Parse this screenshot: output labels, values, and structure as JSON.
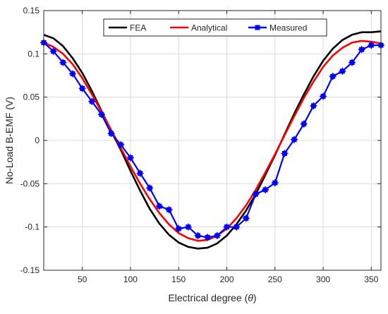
{
  "chart_data": {
    "type": "line",
    "xlabel": "Electrical degree (",
    "xlabel_symbol": "θ",
    "xlabel_suffix": ")",
    "ylabel": "No-Load B-EMF (V)",
    "xlim": [
      10,
      360
    ],
    "ylim": [
      -0.15,
      0.15
    ],
    "xticks": [
      50,
      100,
      150,
      200,
      250,
      300,
      350
    ],
    "yticks": [
      -0.15,
      -0.1,
      -0.05,
      0,
      0.05,
      0.1,
      0.15
    ],
    "xtick_labels": [
      "50",
      "100",
      "150",
      "200",
      "250",
      "300",
      "350"
    ],
    "ytick_labels": [
      "-0.15",
      "-0.1",
      "-0.05",
      "0",
      "0.05",
      "0.1",
      "0.15"
    ],
    "grid": true,
    "legend_position": "top-center",
    "series": [
      {
        "name": "FEA",
        "color": "#000000",
        "marker": "none",
        "x": [
          10,
          20,
          30,
          40,
          50,
          60,
          70,
          80,
          90,
          100,
          110,
          120,
          130,
          140,
          150,
          160,
          170,
          180,
          190,
          200,
          210,
          220,
          230,
          240,
          250,
          260,
          270,
          280,
          290,
          300,
          310,
          320,
          330,
          340,
          350,
          360
        ],
        "y": [
          0.122,
          0.118,
          0.109,
          0.095,
          0.078,
          0.057,
          0.034,
          0.011,
          -0.011,
          -0.035,
          -0.058,
          -0.079,
          -0.096,
          -0.109,
          -0.118,
          -0.123,
          -0.125,
          -0.124,
          -0.119,
          -0.11,
          -0.097,
          -0.081,
          -0.062,
          -0.04,
          -0.017,
          0.007,
          0.031,
          0.053,
          0.074,
          0.092,
          0.106,
          0.116,
          0.122,
          0.125,
          0.125,
          0.126
        ]
      },
      {
        "name": "Analytical",
        "color": "#ff0000",
        "marker": "none",
        "x": [
          10,
          20,
          30,
          40,
          50,
          60,
          70,
          80,
          90,
          100,
          110,
          120,
          130,
          140,
          150,
          160,
          170,
          180,
          190,
          200,
          210,
          220,
          230,
          240,
          250,
          260,
          270,
          280,
          290,
          300,
          310,
          320,
          330,
          340,
          350,
          360
        ],
        "y": [
          0.113,
          0.108,
          0.1,
          0.088,
          0.072,
          0.053,
          0.033,
          0.012,
          -0.009,
          -0.03,
          -0.05,
          -0.068,
          -0.084,
          -0.097,
          -0.107,
          -0.113,
          -0.116,
          -0.115,
          -0.11,
          -0.102,
          -0.09,
          -0.075,
          -0.057,
          -0.037,
          -0.016,
          0.006,
          0.028,
          0.049,
          0.068,
          0.085,
          0.098,
          0.107,
          0.113,
          0.115,
          0.114,
          0.112
        ]
      },
      {
        "name": "Measured",
        "color": "#0000ff",
        "marker": "square",
        "x": [
          10,
          20,
          30,
          40,
          50,
          60,
          70,
          80,
          90,
          100,
          110,
          120,
          130,
          140,
          150,
          160,
          170,
          180,
          190,
          200,
          210,
          220,
          230,
          240,
          250,
          260,
          270,
          280,
          290,
          300,
          310,
          320,
          330,
          340,
          350,
          360
        ],
        "y": [
          0.113,
          0.103,
          0.09,
          0.077,
          0.06,
          0.045,
          0.03,
          0.008,
          -0.005,
          -0.02,
          -0.038,
          -0.055,
          -0.076,
          -0.08,
          -0.102,
          -0.1,
          -0.11,
          -0.112,
          -0.11,
          -0.1,
          -0.1,
          -0.09,
          -0.062,
          -0.057,
          -0.049,
          -0.015,
          0.001,
          0.019,
          0.04,
          0.051,
          0.074,
          0.08,
          0.09,
          0.105,
          0.11,
          0.11
        ]
      }
    ]
  }
}
